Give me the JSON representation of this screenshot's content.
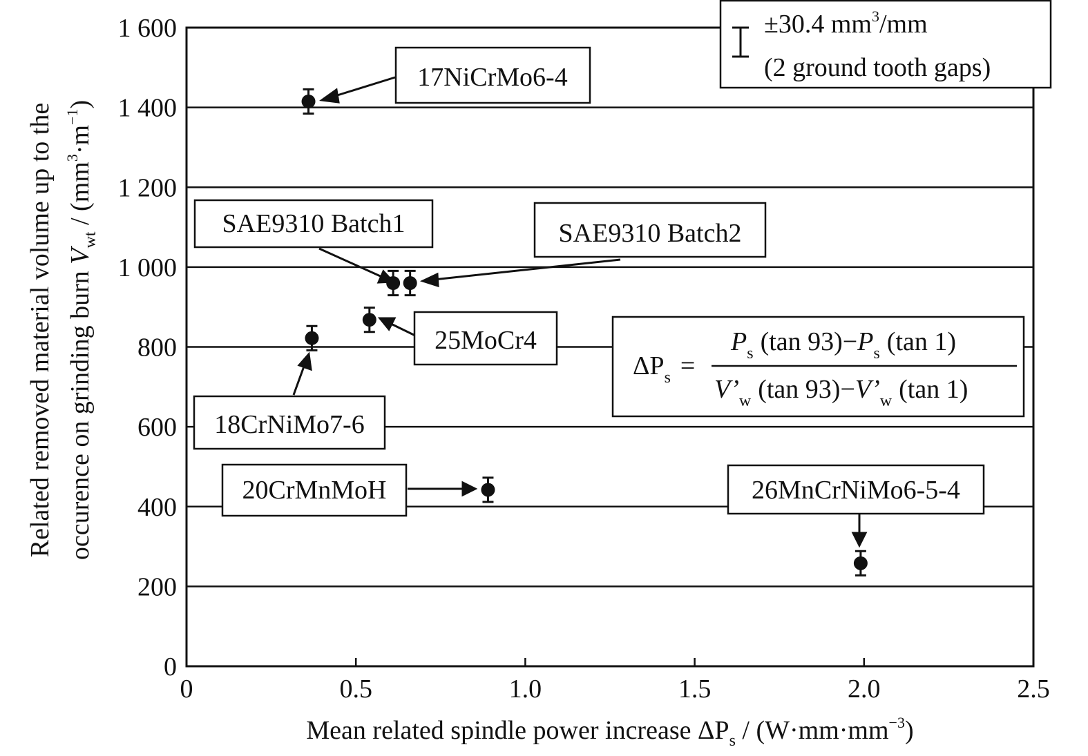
{
  "chart_data": {
    "type": "scatter",
    "xlabel": "Mean related spindle power increase",
    "ylabel": "Related removed material volume up to the occurence on grinding burn",
    "xlim": [
      0,
      2.5
    ],
    "ylim": [
      0,
      1600
    ],
    "x_ticks": [
      "0",
      "0.5",
      "1.0",
      "1.5",
      "2.0",
      "2.5"
    ],
    "y_ticks": [
      "0",
      "200",
      "400",
      "600",
      "800",
      "1 000",
      "1 200",
      "1 400",
      "1 600"
    ],
    "grid": "horizontal",
    "error_bar": 30.4,
    "points": [
      {
        "label": "17NiCrMo6-4",
        "x": 0.36,
        "y": 1415
      },
      {
        "label": "SAE9310 Batch1",
        "x": 0.61,
        "y": 960
      },
      {
        "label": "SAE9310 Batch2",
        "x": 0.66,
        "y": 960
      },
      {
        "label": "25MoCr4",
        "x": 0.54,
        "y": 868
      },
      {
        "label": "18CrNiMo7-6",
        "x": 0.37,
        "y": 822
      },
      {
        "label": "20CrMnMoH",
        "x": 0.89,
        "y": 442
      },
      {
        "label": "26MnCrNiMo6-5-4",
        "x": 1.99,
        "y": 258
      }
    ],
    "legend": {
      "placement": "top-right",
      "line1": "±30.4 mm",
      "line1_sup": "3",
      "line1_tail": "/mm",
      "line2": "(2 ground tooth gaps)"
    },
    "formula": {
      "placement": "right",
      "lhs": "ΔP",
      "lhs_sub": "s",
      "eq": "=",
      "num_P1": "P",
      "num_s1": "s",
      "num_t1": "(tan 93)",
      "num_minus": "−",
      "num_P2": "P",
      "num_s2": "s",
      "num_t2": "(tan 1)",
      "den_V1": "V’",
      "den_w1": "w",
      "den_t1": "(tan 93)",
      "den_minus": "−",
      "den_V2": "V’",
      "den_w2": "w",
      "den_t2": "(tan 1)"
    },
    "x_unit": {
      "sym": "ΔP",
      "sub": "s",
      "unit": " / (W·mm·mm",
      "sup": "−3",
      "close": ")"
    },
    "y_unit": {
      "sym": "V",
      "sub": "wt",
      "unit": " / (mm",
      "sup": "3",
      "mid": "·m",
      "sup2": "−1",
      "close": ")"
    },
    "y_title_line1": "Related removed material volume up to the",
    "y_title_line2": "occurence on grinding burn"
  }
}
